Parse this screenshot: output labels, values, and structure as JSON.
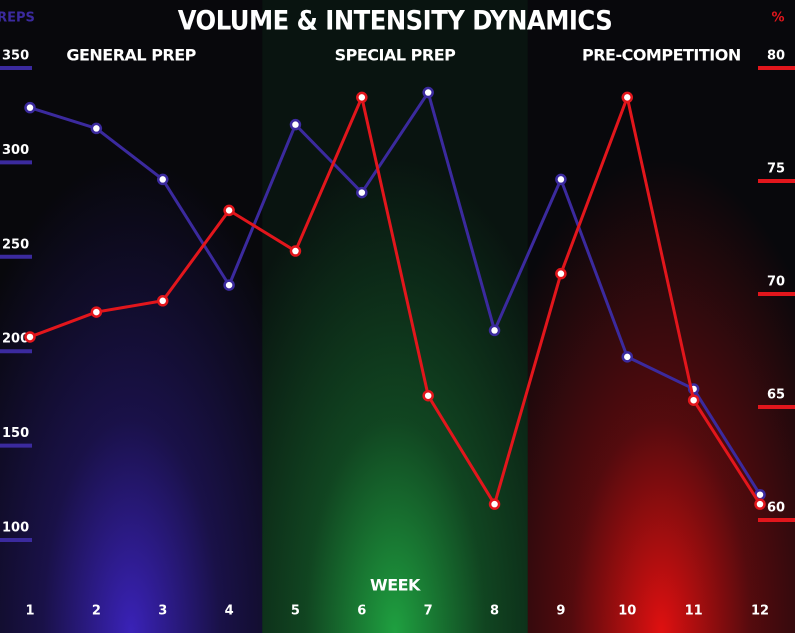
{
  "chart_data": {
    "type": "line",
    "title": "VOLUME & INTENSITY DYNAMICS",
    "y_label": "REPS",
    "y2_label": "%",
    "x_label": "WEEK",
    "categories": [
      "1",
      "2",
      "3",
      "4",
      "5",
      "6",
      "7",
      "8",
      "9",
      "10",
      "11",
      "12"
    ],
    "phases": [
      {
        "label": "GENERAL PREP",
        "color": "#3a22b8"
      },
      {
        "label": "SPECIAL PREP",
        "color": "#1fa040"
      },
      {
        "label": "PRE-COMPETITION",
        "color": "#e01010"
      }
    ],
    "series": [
      {
        "color": "#3b2a9e",
        "values": [
          329,
          318,
          291,
          235,
          320,
          284,
          337,
          211,
          291,
          197,
          180,
          124
        ]
      },
      {
        "color": "#e2161c",
        "axis": "y2",
        "values": [
          68.1,
          69.2,
          69.7,
          73.7,
          71.9,
          78.7,
          65.5,
          60.7,
          70.9,
          78.7,
          65.3,
          60.7
        ]
      }
    ],
    "ylim": [
      100,
      350
    ],
    "yticks": [
      100,
      150,
      200,
      250,
      300,
      350
    ],
    "y2lim": [
      60,
      80
    ],
    "y2ticks": [
      60,
      65,
      70,
      75,
      80
    ]
  }
}
